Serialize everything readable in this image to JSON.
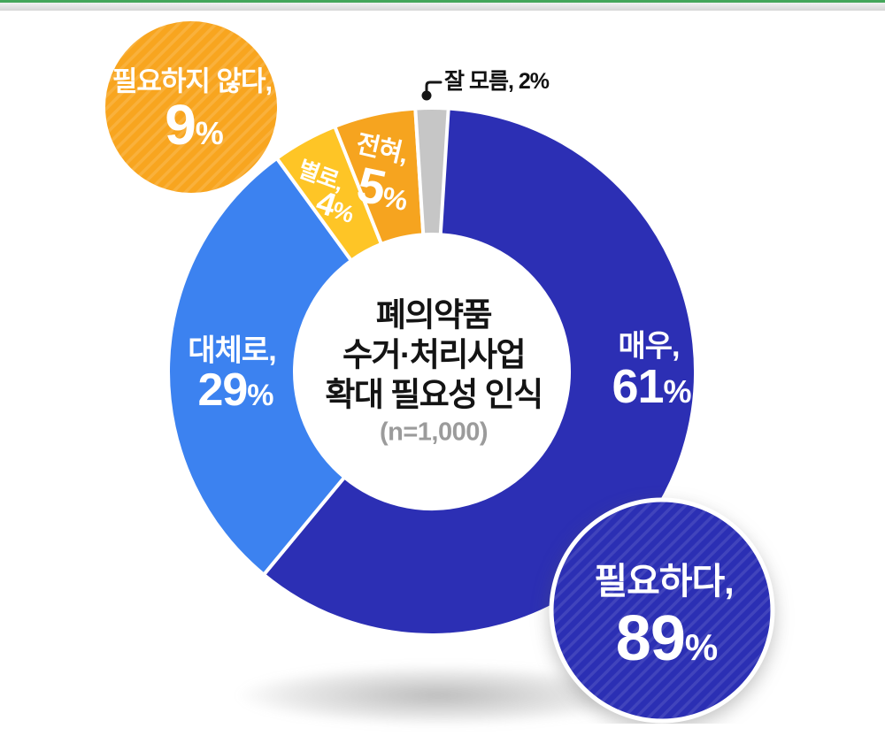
{
  "page": {
    "top_accent_color": "#44A65A",
    "background": "#FFFFFF"
  },
  "ui": {
    "percent_sign": "%"
  },
  "chart_data": {
    "type": "pie",
    "subtype": "donut",
    "title_lines": [
      "폐의약품",
      "수거·처리사업",
      "확대 필요성 인식"
    ],
    "sample_note": "(n=1,000)",
    "unit": "%",
    "legend_position": "on-slices",
    "segments": [
      {
        "label": "매우,",
        "value": 61,
        "color": "#2C2FB4"
      },
      {
        "label": "대체로,",
        "value": 29,
        "color": "#3C82F0"
      },
      {
        "label": "별로,",
        "value": 4,
        "color": "#FEC526"
      },
      {
        "label": "전혀,",
        "value": 5,
        "color": "#F6A41F"
      },
      {
        "label": "잘 모름",
        "value": 2,
        "color": "#C6C6C6"
      }
    ],
    "annotation": {
      "text": "잘 모름, 2%"
    },
    "callouts": [
      {
        "label": "필요하지 않다,",
        "value": 9,
        "color": "#F8A51F"
      },
      {
        "label": "필요하다,",
        "value": 89,
        "color": "#2B2FB4"
      }
    ]
  }
}
